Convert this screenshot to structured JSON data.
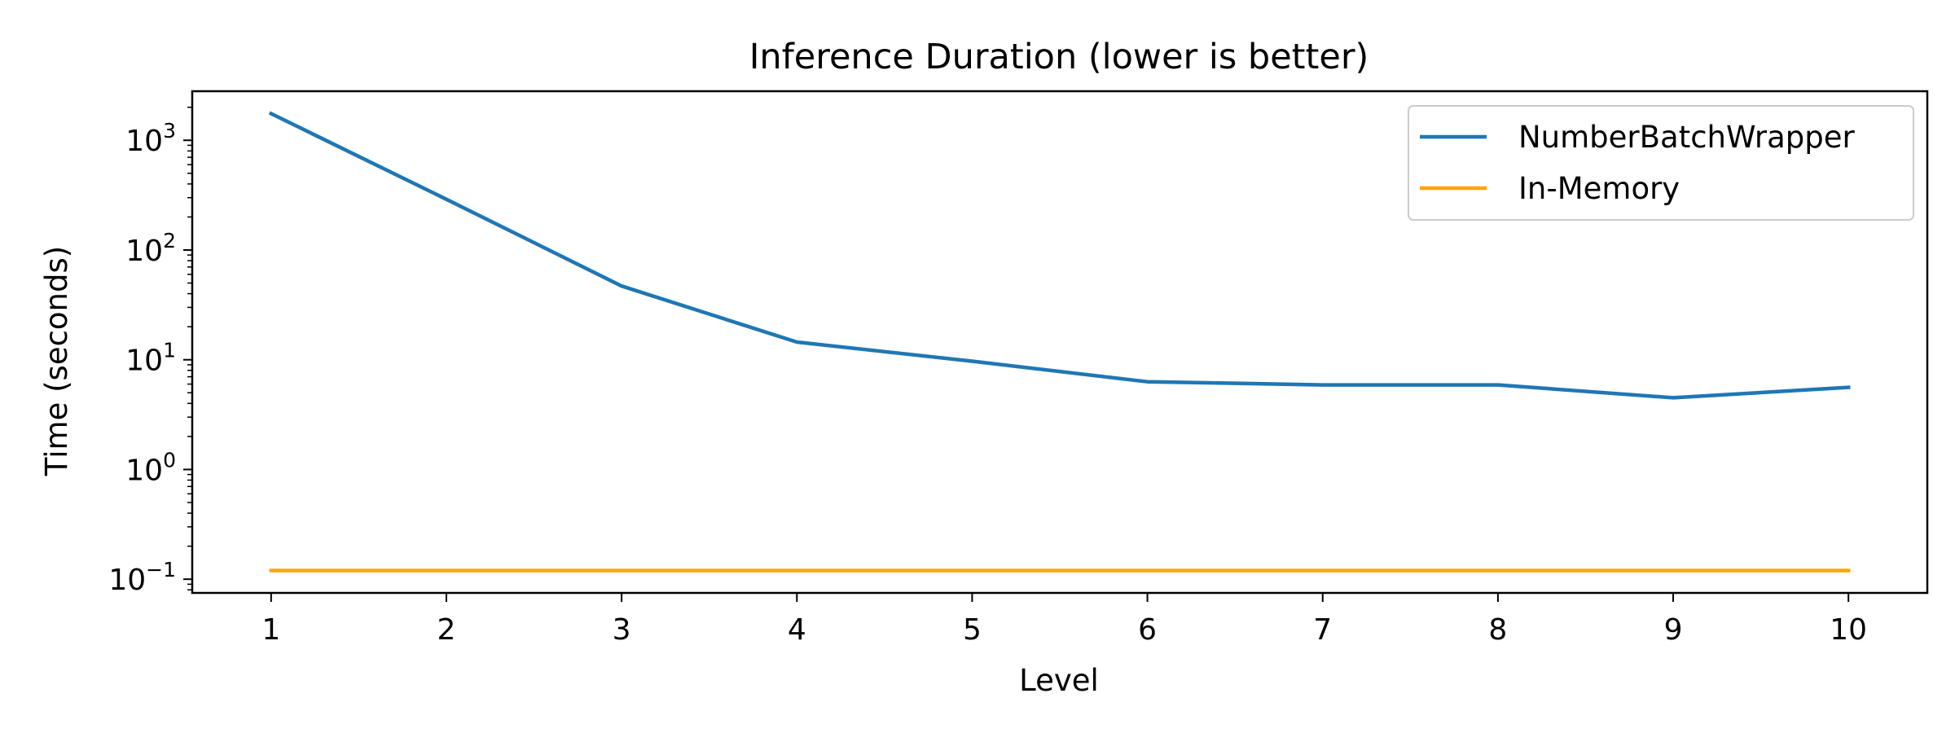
{
  "chart_data": {
    "type": "line",
    "title": "Inference Duration (lower is better)",
    "xlabel": "Level",
    "ylabel": "Time (seconds)",
    "yscale": "log",
    "grid": false,
    "legend_position": "top-right",
    "xlim": [
      0.55,
      10.45
    ],
    "ylim": [
      0.075,
      2800
    ],
    "x_ticks": [
      1,
      2,
      3,
      4,
      5,
      6,
      7,
      8,
      9,
      10
    ],
    "y_ticks": [
      0.1,
      1,
      10,
      100,
      1000
    ],
    "y_tick_labels": [
      {
        "base": "10",
        "exp": "−1"
      },
      {
        "base": "10",
        "exp": "0"
      },
      {
        "base": "10",
        "exp": "1"
      },
      {
        "base": "10",
        "exp": "2"
      },
      {
        "base": "10",
        "exp": "3"
      }
    ],
    "series": [
      {
        "name": "NumberBatchWrapper",
        "color": "#1f77b4",
        "x": [
          1,
          2,
          3,
          4,
          5,
          6,
          7,
          8,
          9,
          10
        ],
        "y": [
          1750,
          290,
          47,
          14.5,
          9.7,
          6.3,
          5.9,
          5.9,
          4.5,
          5.6
        ]
      },
      {
        "name": "In-Memory",
        "color": "#ffa500",
        "x": [
          1,
          2,
          3,
          4,
          5,
          6,
          7,
          8,
          9,
          10
        ],
        "y": [
          0.12,
          0.12,
          0.12,
          0.12,
          0.12,
          0.12,
          0.12,
          0.12,
          0.12,
          0.12
        ]
      }
    ]
  }
}
